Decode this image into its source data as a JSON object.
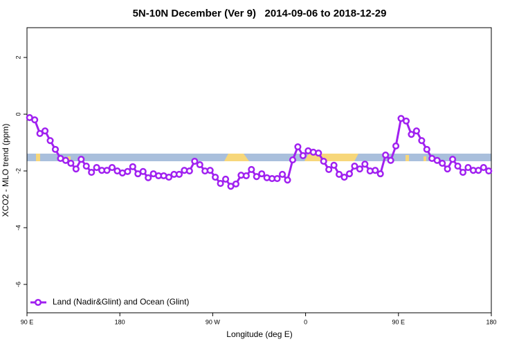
{
  "chart_data": {
    "type": "line",
    "title": "5N-10N December (Ver 9)   2014-09-06 to 2018-12-29",
    "x_label": "Longitude (deg E)",
    "y_label": "XCO2 - MLO trend (ppm)",
    "x": [
      92.5,
      97.5,
      102.5,
      107.5,
      112.5,
      117.5,
      122.5,
      127.5,
      132.5,
      137.5,
      142.5,
      147.5,
      152.5,
      157.5,
      162.5,
      167.5,
      172.5,
      177.5,
      182.5,
      187.5,
      192.5,
      197.5,
      202.5,
      207.5,
      212.5,
      217.5,
      222.5,
      227.5,
      232.5,
      237.5,
      242.5,
      247.5,
      252.5,
      257.5,
      262.5,
      267.5,
      272.5,
      277.5,
      282.5,
      287.5,
      292.5,
      297.5,
      302.5,
      307.5,
      312.5,
      317.5,
      322.5,
      327.5,
      332.5,
      337.5,
      342.5,
      347.5,
      352.5,
      357.5,
      362.5,
      367.5,
      372.5,
      377.5,
      382.5,
      387.5,
      392.5,
      397.5,
      402.5,
      407.5,
      412.5,
      417.5,
      422.5,
      427.5,
      432.5,
      437.5,
      442.5,
      447.5,
      452.5,
      457.5,
      462.5,
      467.5,
      472.5,
      477.5,
      482.5,
      487.5,
      492.5,
      497.5,
      502.5,
      507.5,
      512.5,
      517.5,
      522.5,
      527.5,
      532.5,
      537.5
    ],
    "series": [
      {
        "name": "Land (Nadir&Glint) and Ocean (Glint)",
        "color": "#a020f0",
        "values": [
          -0.12,
          -0.2,
          -0.68,
          -0.59,
          -0.93,
          -1.24,
          -1.56,
          -1.63,
          -1.73,
          -1.93,
          -1.59,
          -1.83,
          -2.05,
          -1.88,
          -1.98,
          -1.98,
          -1.88,
          -2.0,
          -2.07,
          -2.02,
          -1.85,
          -2.1,
          -2.02,
          -2.24,
          -2.1,
          -2.17,
          -2.17,
          -2.22,
          -2.12,
          -2.12,
          -1.98,
          -2.0,
          -1.66,
          -1.78,
          -2.0,
          -1.98,
          -2.22,
          -2.44,
          -2.29,
          -2.54,
          -2.46,
          -2.15,
          -2.17,
          -1.95,
          -2.2,
          -2.1,
          -2.24,
          -2.27,
          -2.27,
          -2.12,
          -2.32,
          -1.61,
          -1.15,
          -1.46,
          -1.29,
          -1.34,
          -1.37,
          -1.66,
          -1.95,
          -1.8,
          -2.12,
          -2.22,
          -2.1,
          -1.83,
          -1.93,
          -1.76,
          -2.0,
          -1.98,
          -2.1,
          -1.44,
          -1.63,
          -1.12,
          -0.15,
          -0.24,
          -0.71,
          -0.59,
          -0.93,
          -1.24,
          -1.56,
          -1.63,
          -1.73,
          -1.93,
          -1.59,
          -1.83,
          -2.05,
          -1.88,
          -1.98,
          -1.98,
          -1.88,
          -2.0
        ]
      }
    ],
    "xlim": [
      90,
      540
    ],
    "xticks": [
      {
        "value": 90,
        "label": "90 E"
      },
      180,
      {
        "value": 270,
        "label": "90 W"
      },
      {
        "value": 360,
        "label": "0"
      },
      {
        "value": 450,
        "label": "90 E"
      },
      {
        "value": 540,
        "label": "180"
      }
    ],
    "ylim": [
      -7,
      3.05
    ],
    "yticks": [
      2,
      0,
      -2,
      -4,
      -6
    ],
    "legend": "bottomleft"
  }
}
